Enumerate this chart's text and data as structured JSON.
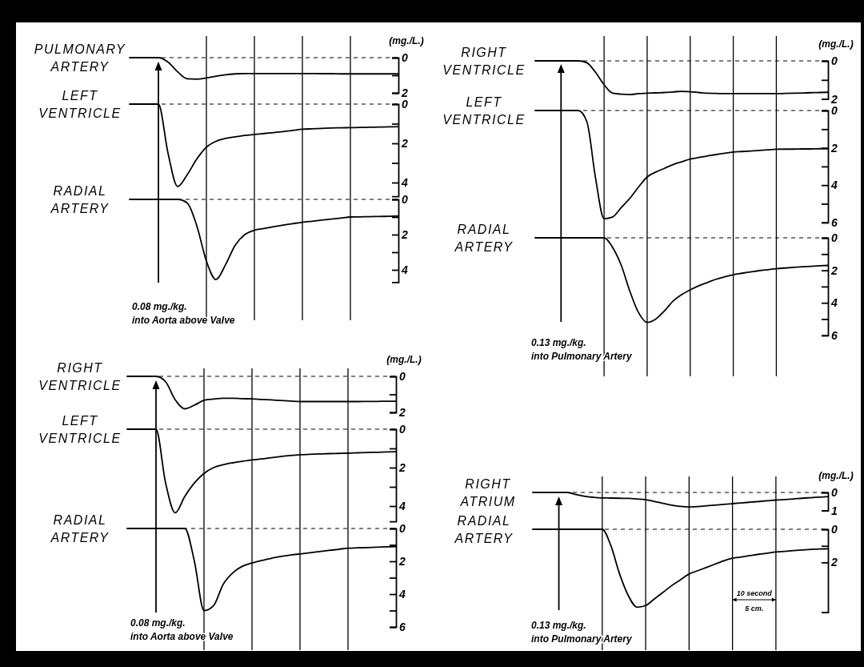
{
  "chart_data": [
    {
      "type": "line",
      "title": "PULMONARY ARTERY",
      "ylabel": "(mg./L.)",
      "categories": [
        null,
        null,
        null,
        null,
        null,
        null,
        null,
        null,
        null,
        null,
        null,
        null,
        null,
        null,
        null,
        null,
        null,
        null,
        null,
        null,
        null,
        null,
        null,
        null,
        null,
        null,
        null,
        null,
        null
      ],
      "values": [
        0,
        0,
        0,
        0,
        0.25,
        0.8,
        1.2,
        1.22,
        1.15,
        1.05,
        0.97,
        0.92,
        0.9,
        0.9,
        0.9,
        0.9,
        0.9,
        0.9,
        0.9,
        0.9,
        0.91,
        0.91,
        0.92,
        0.92,
        0.92,
        0.92,
        0.92,
        0.92,
        0.92
      ],
      "color": "#000000",
      "ylim": [
        2,
        0
      ],
      "yticks": [
        0,
        {
          "value": 1,
          "label": null
        },
        2
      ],
      "grid": "x",
      "tick_labels": "y",
      "ref_lines": [
        {
          "axis": "y",
          "value": 0,
          "line_style": "dashed"
        }
      ]
    },
    {
      "type": "line",
      "title": "LEFT VENTRICLE",
      "categories": [
        null,
        null,
        null,
        null,
        null,
        null,
        null,
        null,
        null,
        null,
        null,
        null,
        null,
        null,
        null,
        null,
        null,
        null,
        null,
        null,
        null,
        null,
        null,
        null,
        null,
        null,
        null,
        null,
        null
      ],
      "values": [
        0,
        0,
        0,
        0,
        2.5,
        4.2,
        3.6,
        2.8,
        2.2,
        1.9,
        1.75,
        1.67,
        1.6,
        1.55,
        1.5,
        1.45,
        1.4,
        1.34,
        1.28,
        1.26,
        1.24,
        1.22,
        1.21,
        1.2,
        1.19,
        1.18,
        1.17,
        1.16,
        1.15
      ],
      "color": "#000000",
      "ylim": [
        4.7,
        0
      ],
      "yticks": [
        0,
        {
          "value": 1,
          "label": null
        },
        2,
        {
          "value": 3,
          "label": null
        },
        4
      ],
      "grid": "x",
      "tick_labels": "y",
      "ref_lines": [
        {
          "axis": "y",
          "value": 0,
          "line_style": "dashed"
        }
      ]
    },
    {
      "type": "line",
      "title": "RADIAL ARTERY",
      "categories": [
        null,
        null,
        null,
        null,
        null,
        null,
        null,
        null,
        null,
        null,
        null,
        null,
        null,
        null,
        null,
        null,
        null,
        null,
        null,
        null,
        null,
        null,
        null,
        null,
        null,
        null,
        null,
        null,
        null
      ],
      "values": [
        0,
        0,
        0,
        0,
        0,
        0,
        0.2,
        1.5,
        3.5,
        4.55,
        3.7,
        2.6,
        2.0,
        1.75,
        1.65,
        1.55,
        1.46,
        1.38,
        1.3,
        1.24,
        1.18,
        1.12,
        1.06,
        1.0,
        0.99,
        0.98,
        0.97,
        0.96,
        0.95
      ],
      "color": "#000000",
      "ylim": [
        4.7,
        0
      ],
      "yticks": [
        0,
        {
          "value": 1,
          "label": null
        },
        2,
        {
          "value": 3,
          "label": null
        },
        4
      ],
      "grid": "x",
      "tick_labels": "y",
      "ref_lines": [
        {
          "axis": "y",
          "value": 0,
          "line_style": "dashed"
        }
      ],
      "annotations": [
        "0.08 mg./kg.",
        "into Aorta above Valve"
      ]
    },
    {
      "type": "line",
      "title": "RIGHT VENTRICLE",
      "ylabel": "(mg./L.)",
      "categories": [
        null,
        null,
        null,
        null,
        null,
        null,
        null,
        null,
        null,
        null,
        null,
        null,
        null,
        null,
        null,
        null,
        null,
        null,
        null,
        null,
        null,
        null,
        null,
        null,
        null,
        null,
        null,
        null,
        null,
        null,
        null,
        null,
        null,
        null,
        null
      ],
      "values": [
        0,
        0,
        0,
        0,
        0,
        0,
        0.1,
        0.6,
        1.25,
        1.7,
        1.75,
        1.77,
        1.72,
        1.7,
        1.68,
        1.66,
        1.63,
        1.6,
        1.62,
        1.66,
        1.7,
        1.71,
        1.72,
        1.72,
        1.72,
        1.72,
        1.72,
        1.72,
        1.72,
        1.71,
        1.7,
        1.69,
        1.67,
        1.66,
        1.65
      ],
      "color": "#000000",
      "ylim": [
        2,
        0
      ],
      "yticks": [
        0,
        {
          "value": 1,
          "label": null
        },
        2
      ],
      "grid": "x",
      "tick_labels": "y",
      "ref_lines": [
        {
          "axis": "y",
          "value": 0,
          "line_style": "dashed"
        }
      ]
    },
    {
      "type": "line",
      "title": "LEFT VENTRICLE",
      "categories": [
        null,
        null,
        null,
        null,
        null,
        null,
        null,
        null,
        null,
        null,
        null,
        null,
        null,
        null,
        null,
        null,
        null,
        null,
        null,
        null,
        null,
        null,
        null,
        null,
        null,
        null,
        null,
        null,
        null,
        null,
        null,
        null,
        null,
        null,
        null
      ],
      "values": [
        0,
        0,
        0,
        0,
        0,
        0,
        0.6,
        3.6,
        5.8,
        5.7,
        5.2,
        4.7,
        4.1,
        3.56,
        3.3,
        3.1,
        2.9,
        2.75,
        2.6,
        2.52,
        2.44,
        2.36,
        2.29,
        2.23,
        2.2,
        2.17,
        2.14,
        2.11,
        2.08,
        2.07,
        2.07,
        2.06,
        2.06,
        2.05,
        2.05
      ],
      "color": "#000000",
      "ylim": [
        6,
        0
      ],
      "yticks": [
        0,
        {
          "value": 1,
          "label": null
        },
        2,
        {
          "value": 3,
          "label": null
        },
        4,
        {
          "value": 5,
          "label": null
        },
        6
      ],
      "grid": "x",
      "tick_labels": "y",
      "ref_lines": [
        {
          "axis": "y",
          "value": 0,
          "line_style": "dashed"
        }
      ]
    },
    {
      "type": "line",
      "title": "RADIAL ARTERY",
      "categories": [
        null,
        null,
        null,
        null,
        null,
        null,
        null,
        null,
        null,
        null,
        null,
        null,
        null,
        null,
        null,
        null,
        null,
        null,
        null,
        null,
        null,
        null,
        null,
        null,
        null,
        null,
        null,
        null,
        null,
        null,
        null,
        null,
        null,
        null,
        null
      ],
      "values": [
        0,
        0,
        0,
        0,
        0,
        0,
        0,
        0,
        0,
        0.6,
        1.7,
        3.3,
        4.6,
        5.2,
        5.0,
        4.5,
        3.9,
        3.5,
        3.2,
        2.95,
        2.75,
        2.55,
        2.4,
        2.27,
        2.18,
        2.1,
        2.02,
        1.96,
        1.9,
        1.86,
        1.82,
        1.78,
        1.75,
        1.72,
        1.7
      ],
      "color": "#000000",
      "ylim": [
        6,
        0
      ],
      "yticks": [
        0,
        {
          "value": 1,
          "label": null
        },
        2,
        {
          "value": 3,
          "label": null
        },
        4,
        {
          "value": 5,
          "label": null
        },
        6
      ],
      "grid": "x",
      "tick_labels": "y",
      "ref_lines": [
        {
          "axis": "y",
          "value": 0,
          "line_style": "dashed"
        }
      ],
      "annotations": [
        "0.13 mg./kg.",
        "into Pulmonary Artery"
      ]
    },
    {
      "type": "line",
      "title": "RIGHT VENTRICLE",
      "ylabel": "(mg./L.)",
      "categories": [
        null,
        null,
        null,
        null,
        null,
        null,
        null,
        null,
        null,
        null,
        null,
        null,
        null,
        null,
        null,
        null,
        null,
        null,
        null,
        null,
        null,
        null,
        null,
        null,
        null,
        null,
        null,
        null,
        null
      ],
      "values": [
        0,
        0,
        0,
        0,
        0.3,
        1.3,
        1.8,
        1.6,
        1.33,
        1.26,
        1.22,
        1.22,
        1.24,
        1.25,
        1.28,
        1.31,
        1.34,
        1.37,
        1.4,
        1.4,
        1.4,
        1.4,
        1.4,
        1.4,
        1.4,
        1.39,
        1.39,
        1.38,
        1.38
      ],
      "color": "#000000",
      "ylim": [
        2,
        0
      ],
      "yticks": [
        0,
        {
          "value": 1,
          "label": null
        },
        2
      ],
      "grid": "x",
      "tick_labels": "y",
      "ref_lines": [
        {
          "axis": "y",
          "value": 0,
          "line_style": "dashed"
        }
      ]
    },
    {
      "type": "line",
      "title": "LEFT VENTRICLE",
      "categories": [
        null,
        null,
        null,
        null,
        null,
        null,
        null,
        null,
        null,
        null,
        null,
        null,
        null,
        null,
        null,
        null,
        null,
        null,
        null,
        null,
        null,
        null,
        null,
        null,
        null,
        null,
        null,
        null,
        null
      ],
      "values": [
        0,
        0,
        0,
        0,
        2.8,
        4.35,
        3.5,
        2.8,
        2.3,
        2.0,
        1.85,
        1.75,
        1.67,
        1.6,
        1.55,
        1.48,
        1.42,
        1.37,
        1.33,
        1.31,
        1.29,
        1.27,
        1.26,
        1.25,
        1.23,
        1.21,
        1.2,
        1.18,
        1.17
      ],
      "color": "#000000",
      "ylim": [
        4.8,
        0
      ],
      "yticks": [
        0,
        {
          "value": 1,
          "label": null
        },
        2,
        {
          "value": 3,
          "label": null
        },
        4
      ],
      "grid": "x",
      "tick_labels": "y",
      "ref_lines": [
        {
          "axis": "y",
          "value": 0,
          "line_style": "dashed"
        }
      ]
    },
    {
      "type": "line",
      "title": "RADIAL ARTERY",
      "categories": [
        null,
        null,
        null,
        null,
        null,
        null,
        null,
        null,
        null,
        null,
        null,
        null,
        null,
        null,
        null,
        null,
        null,
        null,
        null,
        null,
        null,
        null,
        null,
        null,
        null,
        null,
        null,
        null,
        null
      ],
      "values": [
        0,
        0,
        0,
        0,
        0,
        0,
        0,
        2.0,
        5.0,
        4.7,
        3.4,
        2.7,
        2.3,
        2.1,
        1.95,
        1.82,
        1.7,
        1.62,
        1.55,
        1.48,
        1.41,
        1.34,
        1.27,
        1.2,
        1.18,
        1.16,
        1.14,
        1.12,
        1.1
      ],
      "color": "#000000",
      "ylim": [
        6,
        0
      ],
      "yticks": [
        0,
        {
          "value": 1,
          "label": null
        },
        2,
        {
          "value": 3,
          "label": null
        },
        4,
        {
          "value": 5,
          "label": null
        },
        6
      ],
      "grid": "x",
      "tick_labels": "y",
      "ref_lines": [
        {
          "axis": "y",
          "value": 0,
          "line_style": "dashed"
        }
      ],
      "annotations": [
        "0.08 mg./kg.",
        "into Aorta above Valve"
      ]
    },
    {
      "type": "line",
      "title": "RIGHT ATRIUM",
      "ylabel": "(mg./L.)",
      "categories": [
        null,
        null,
        null,
        null,
        null,
        null,
        null,
        null,
        null,
        null,
        null,
        null,
        null,
        null,
        null,
        null,
        null,
        null,
        null,
        null,
        null,
        null,
        null,
        null,
        null,
        null,
        null,
        null,
        null,
        null,
        null,
        null,
        null,
        null,
        null
      ],
      "values": [
        0,
        0,
        0,
        0,
        0,
        0.12,
        0.22,
        0.27,
        0.3,
        0.31,
        0.32,
        0.33,
        0.36,
        0.4,
        0.5,
        0.6,
        0.7,
        0.77,
        0.8,
        0.78,
        0.74,
        0.7,
        0.66,
        0.62,
        0.58,
        0.54,
        0.5,
        0.46,
        0.42,
        0.39,
        0.36,
        0.32,
        0.29,
        0.26,
        0.23
      ],
      "color": "#000000",
      "ylim": [
        1,
        0
      ],
      "yticks": [
        0,
        1
      ],
      "grid": "x",
      "tick_labels": "y",
      "ref_lines": [
        {
          "axis": "y",
          "value": 0,
          "line_style": "dashed"
        }
      ]
    },
    {
      "type": "line",
      "title": "RADIAL ARTERY",
      "categories": [
        null,
        null,
        null,
        null,
        null,
        null,
        null,
        null,
        null,
        null,
        null,
        null,
        null,
        null,
        null,
        null,
        null,
        null,
        null,
        null,
        null,
        null,
        null,
        null,
        null,
        null,
        null,
        null,
        null,
        null,
        null,
        null,
        null,
        null,
        null
      ],
      "values": [
        0,
        0,
        0,
        0,
        0,
        0,
        0,
        0,
        0,
        1.0,
        2.7,
        4.0,
        4.7,
        4.6,
        4.2,
        3.8,
        3.4,
        3.05,
        2.7,
        2.5,
        2.3,
        2.1,
        1.9,
        1.75,
        1.67,
        1.59,
        1.51,
        1.44,
        1.37,
        1.33,
        1.29,
        1.25,
        1.21,
        1.19,
        1.18
      ],
      "color": "#000000",
      "ylim": [
        5,
        0
      ],
      "yticks": [
        0,
        {
          "value": 1,
          "label": null
        },
        2
      ],
      "grid": "x",
      "tick_labels": "y",
      "ref_lines": [
        {
          "axis": "y",
          "value": 0,
          "line_style": "dashed"
        }
      ],
      "annotations": [
        "0.13 mg./kg.",
        "into Pulmonary Artery",
        "10 second",
        "5 cm."
      ]
    }
  ]
}
